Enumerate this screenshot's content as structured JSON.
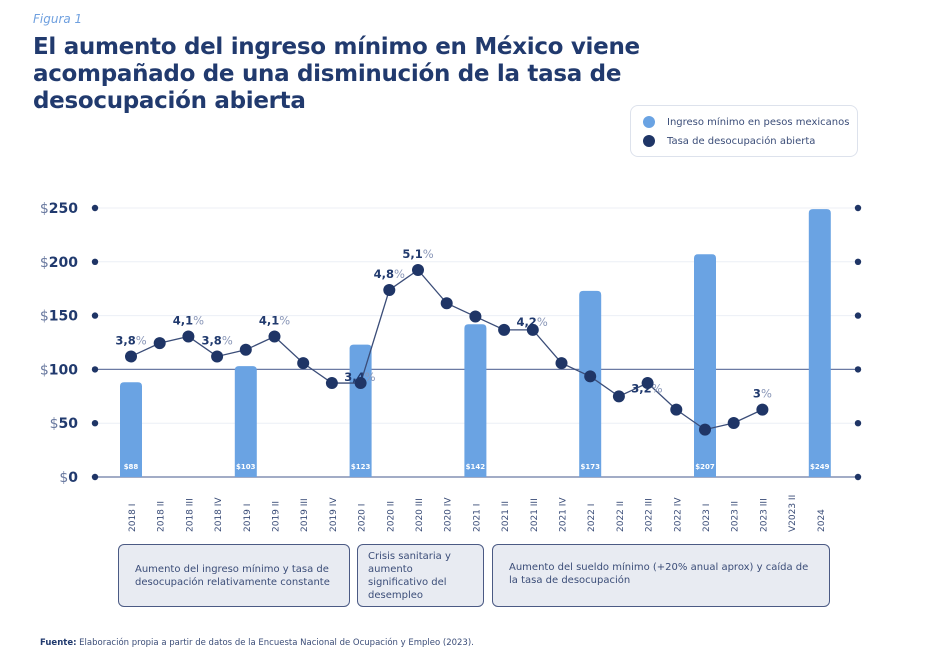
{
  "figure_label": "Figura 1",
  "title": "El aumento del ingreso mínimo en México viene acompañado de una disminución de la tasa de desocupación abierta",
  "legend": {
    "items": [
      {
        "label": "Ingreso mínimo en pesos mexicanos",
        "color": "#6aa3e3"
      },
      {
        "label": "Tasa de desocupación abierta",
        "color": "#1f3566"
      }
    ]
  },
  "chart_data": {
    "type": "bar+line",
    "title": "El aumento del ingreso mínimo en México viene acompañado de una disminución de la tasa de desocupación abierta",
    "xlabel": "",
    "ylabel": "",
    "ylim": [
      0,
      250
    ],
    "yticks": [
      0,
      50,
      100,
      150,
      200,
      250
    ],
    "ytick_labels": [
      "$0",
      "$50",
      "$100",
      "$150",
      "$200",
      "$250"
    ],
    "grid": true,
    "legend_position": "top-right",
    "categories": [
      "2018 I",
      "2018 II",
      "2018 III",
      "2018 IV",
      "2019 I",
      "2019 II",
      "2019 III",
      "2019 IV",
      "2020 I",
      "2020 II",
      "2020 III",
      "2020 IV",
      "2021 I",
      "2021 II",
      "2021 III",
      "2021 IV",
      "2022 I",
      "2022 II",
      "2022 III",
      "2022 IV",
      "2023 I",
      "2023 II",
      "2023 III",
      "V2023 II",
      "2024"
    ],
    "series": [
      {
        "name": "Ingreso mínimo en pesos mexicanos",
        "type": "bar",
        "color": "#6aa3e3",
        "values": [
          88,
          null,
          null,
          null,
          103,
          null,
          null,
          null,
          123,
          null,
          null,
          null,
          142,
          null,
          null,
          null,
          173,
          null,
          null,
          null,
          207,
          null,
          null,
          null,
          249
        ],
        "labels": [
          "$88",
          null,
          null,
          null,
          "$103",
          null,
          null,
          null,
          "$123",
          null,
          null,
          null,
          "$142",
          null,
          null,
          null,
          "$173",
          null,
          null,
          null,
          "$207",
          null,
          null,
          null,
          "$249"
        ]
      },
      {
        "name": "Tasa de desocupación abierta",
        "type": "line",
        "color": "#1f3566",
        "unit": "%",
        "values": [
          3.8,
          4.0,
          4.1,
          3.8,
          3.9,
          4.1,
          3.7,
          3.4,
          3.4,
          4.8,
          5.1,
          4.6,
          4.4,
          4.2,
          4.2,
          3.7,
          3.5,
          3.2,
          3.4,
          3.0,
          2.7,
          2.8,
          3.0,
          null,
          null
        ],
        "labels": [
          "3,8%",
          null,
          "4,1%",
          "3,8%",
          null,
          "4,1%",
          null,
          "3,4%",
          null,
          "4,8%",
          "5,1%",
          null,
          null,
          "4,2%",
          null,
          null,
          null,
          "3,2%",
          null,
          null,
          null,
          null,
          "3%",
          null,
          null
        ]
      }
    ],
    "reference_line": 100
  },
  "annotations": [
    {
      "text": "Aumento del ingreso mínimo y tasa de desocupación relativamente constante"
    },
    {
      "text": "Crisis sanitaria y aumento significativo del desempleo"
    },
    {
      "text": "Aumento del sueldo mínimo (+20% anual aprox) y caída de la tasa de desocupación"
    }
  ],
  "source": {
    "label": "Fuente:",
    "text": " Elaboración propia a partir de datos de la Encuesta Nacional de Ocupación y Empleo (2023)."
  }
}
